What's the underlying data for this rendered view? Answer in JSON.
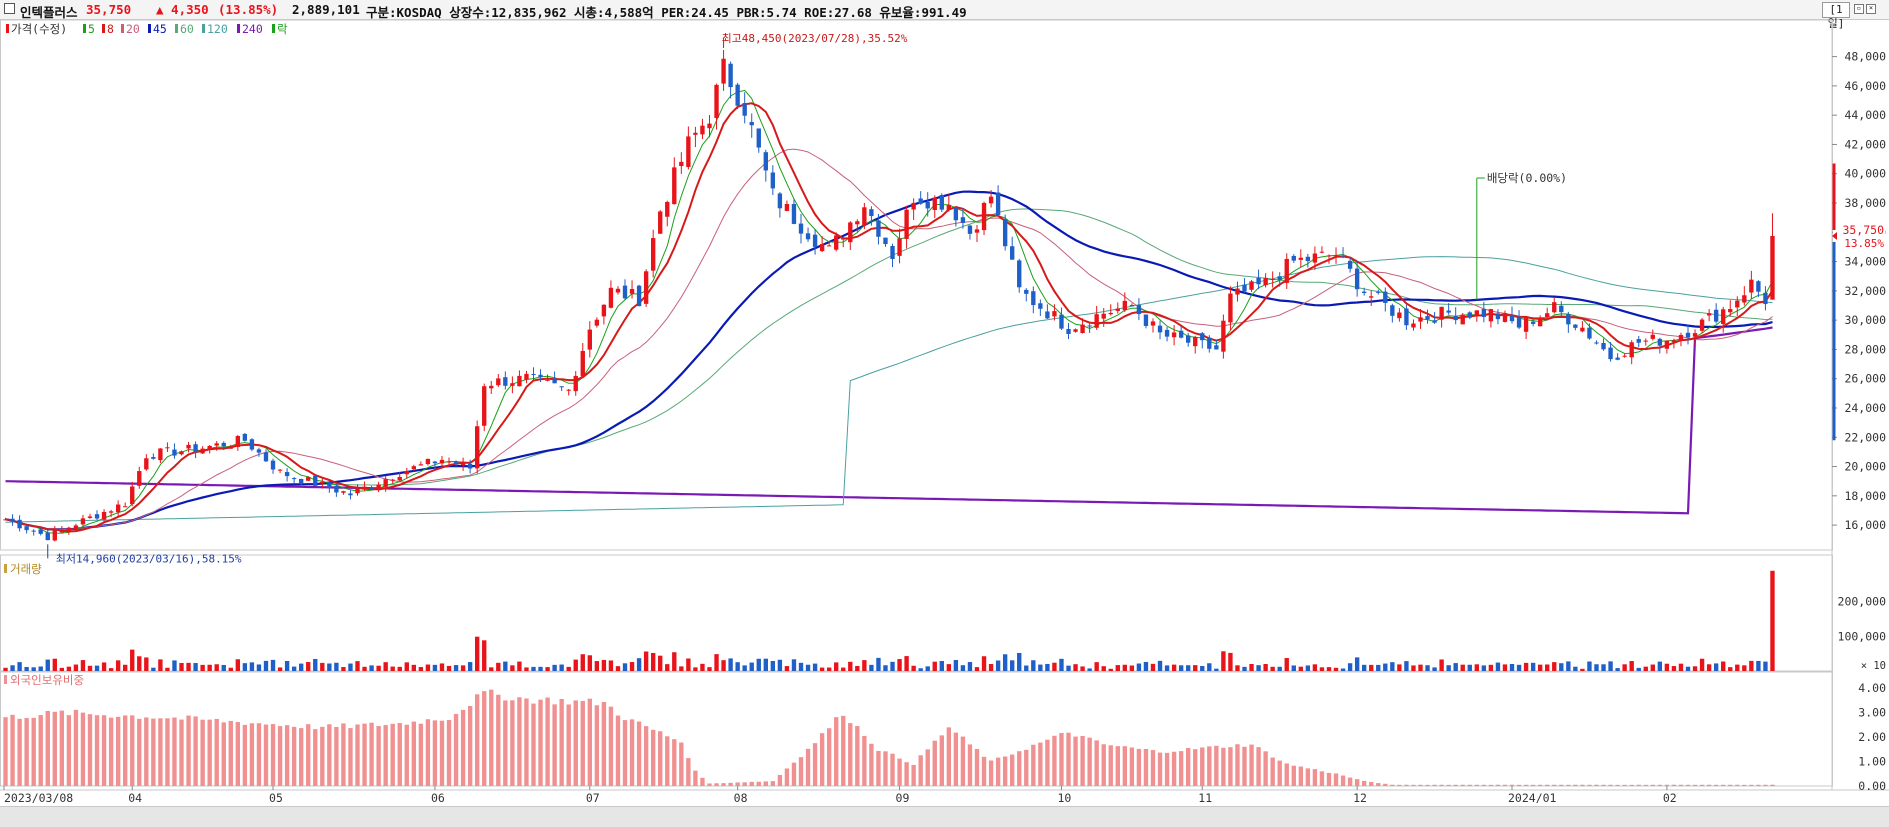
{
  "header": {
    "name": "인텍플러스",
    "price": "35,750",
    "change": "▲ 4,350",
    "change_pct": "(13.85%)",
    "volume": "2,889,101",
    "info": "구분:KOSDAQ 상장수:12,835,962 시총:4,588억 PER:24.45 PBR:5.74 ROE:27.68 유보율:991.49",
    "period": "[1일]"
  },
  "colors": {
    "up": "#e8141a",
    "down": "#1f5fc8",
    "ma5": "#1aa01a",
    "ma8": "#d61a1a",
    "ma20": "#c8607a",
    "ma45": "#0a1ab4",
    "ma60": "#58a878",
    "ma120": "#4aa0a0",
    "ma240": "#7a1ab4",
    "foreign": "#f09090"
  },
  "legend": [
    {
      "label": "가격(수정)",
      "color": "#e8141a"
    },
    {
      "label": "5",
      "color": "#1aa01a"
    },
    {
      "label": "8",
      "color": "#d61a1a"
    },
    {
      "label": "20",
      "color": "#c8607a"
    },
    {
      "label": "45",
      "color": "#0a1ab4"
    },
    {
      "label": "60",
      "color": "#58a878"
    },
    {
      "label": "120",
      "color": "#4aa0a0"
    },
    {
      "label": "240",
      "color": "#7a1ab4"
    },
    {
      "label": "락",
      "color": "#1aa01a"
    }
  ],
  "annotations": {
    "high": "최고48,450(2023/07/28),35.52%",
    "low": "최저14,960(2023/03/16),58.15%",
    "dividend": "배당락(0.00%)",
    "last_price": "35,750",
    "last_pct": "13.85%"
  },
  "chart_data": [
    {
      "type": "candlestick",
      "title": "",
      "y_ticks": [
        16000,
        18000,
        20000,
        22000,
        24000,
        26000,
        28000,
        30000,
        32000,
        34000,
        36000,
        38000,
        40000,
        42000,
        44000,
        46000,
        48000
      ],
      "ylim": [
        14300,
        50500
      ],
      "x_ticks": [
        "2023/03/08",
        "04",
        "05",
        "06",
        "07",
        "08",
        "09",
        "10",
        "11",
        "12",
        "2024/01",
        "02"
      ],
      "anchors": [
        [
          "2023-03-08",
          16400
        ],
        [
          "2023-03-16",
          15200
        ],
        [
          "2023-03-22",
          16100
        ],
        [
          "2023-03-31",
          17500
        ],
        [
          "2023-04-05",
          20800
        ],
        [
          "2023-04-14",
          21200
        ],
        [
          "2023-04-25",
          21800
        ],
        [
          "2023-05-02",
          19600
        ],
        [
          "2023-05-10",
          18700
        ],
        [
          "2023-05-16",
          18100
        ],
        [
          "2023-05-25",
          19600
        ],
        [
          "2023-06-02",
          20500
        ],
        [
          "2023-06-08",
          19900
        ],
        [
          "2023-06-12",
          25700
        ],
        [
          "2023-06-20",
          26000
        ],
        [
          "2023-06-28",
          25200
        ],
        [
          "2023-07-03",
          29500
        ],
        [
          "2023-07-06",
          32000
        ],
        [
          "2023-07-12",
          31500
        ],
        [
          "2023-07-17",
          37500
        ],
        [
          "2023-07-21",
          42000
        ],
        [
          "2023-07-26",
          44000
        ],
        [
          "2023-07-28",
          47200
        ],
        [
          "2023-08-02",
          44500
        ],
        [
          "2023-08-08",
          38500
        ],
        [
          "2023-08-14",
          36500
        ],
        [
          "2023-08-18",
          34700
        ],
        [
          "2023-08-25",
          38000
        ],
        [
          "2023-08-31",
          34500
        ],
        [
          "2023-09-05",
          38500
        ],
        [
          "2023-09-12",
          38000
        ],
        [
          "2023-09-15",
          36000
        ],
        [
          "2023-09-20",
          38500
        ],
        [
          "2023-09-26",
          32000
        ],
        [
          "2023-10-05",
          29500
        ],
        [
          "2023-10-12",
          30500
        ],
        [
          "2023-10-18",
          31000
        ],
        [
          "2023-10-24",
          29000
        ],
        [
          "2023-10-30",
          28500
        ],
        [
          "2023-11-03",
          28000
        ],
        [
          "2023-11-07",
          31500
        ],
        [
          "2023-11-14",
          32500
        ],
        [
          "2023-11-20",
          34000
        ],
        [
          "2023-11-28",
          34500
        ],
        [
          "2023-12-04",
          32000
        ],
        [
          "2023-12-12",
          30000
        ],
        [
          "2023-12-20",
          30500
        ],
        [
          "2023-12-28",
          30500
        ],
        [
          "2024-01-03",
          29600
        ],
        [
          "2024-01-10",
          30800
        ],
        [
          "2024-01-16",
          29500
        ],
        [
          "2024-01-22",
          27500
        ],
        [
          "2024-01-26",
          28500
        ],
        [
          "2024-02-01",
          28700
        ],
        [
          "2024-02-07",
          29500
        ],
        [
          "2024-02-14",
          31000
        ],
        [
          "2024-02-19",
          32500
        ],
        [
          "2024-02-21",
          31400
        ],
        [
          "2024-02-22",
          35750
        ]
      ],
      "high": {
        "date": "2023-07-28",
        "value": 48450
      },
      "low": {
        "date": "2023-03-16",
        "value": 14960
      },
      "dividend_date": "2023-12-26"
    },
    {
      "type": "bar",
      "title": "거래량",
      "unit": "× 10",
      "y_ticks": [
        100000,
        200000
      ],
      "ylim": [
        0,
        320000
      ],
      "last_value": 288910
    },
    {
      "type": "bar",
      "title": "외국인보유비중",
      "y_ticks": [
        0.0,
        1.0,
        2.0,
        3.0,
        4.0
      ],
      "ylim": [
        0,
        4.5
      ],
      "anchors": [
        [
          "2023-03-08",
          2.8
        ],
        [
          "2023-03-20",
          3.0
        ],
        [
          "2023-04-10",
          2.8
        ],
        [
          "2023-05-10",
          2.4
        ],
        [
          "2023-05-25",
          2.55
        ],
        [
          "2023-06-05",
          2.8
        ],
        [
          "2023-06-12",
          3.8
        ],
        [
          "2023-06-20",
          3.55
        ],
        [
          "2023-07-05",
          3.4
        ],
        [
          "2023-07-10",
          2.8
        ],
        [
          "2023-07-20",
          1.8
        ],
        [
          "2023-07-24",
          0.6
        ],
        [
          "2023-07-26",
          0.1
        ],
        [
          "2023-08-08",
          0.2
        ],
        [
          "2023-08-15",
          1.5
        ],
        [
          "2023-08-22",
          3.0
        ],
        [
          "2023-08-29",
          1.5
        ],
        [
          "2023-09-05",
          0.9
        ],
        [
          "2023-09-12",
          2.4
        ],
        [
          "2023-09-20",
          1.0
        ],
        [
          "2023-10-05",
          2.2
        ],
        [
          "2023-10-12",
          1.7
        ],
        [
          "2023-10-24",
          1.4
        ],
        [
          "2023-11-03",
          1.6
        ],
        [
          "2023-11-10",
          1.7
        ],
        [
          "2023-11-17",
          0.9
        ],
        [
          "2023-11-28",
          0.5
        ],
        [
          "2023-12-04",
          0.2
        ],
        [
          "2023-12-08",
          0.05
        ],
        [
          "2024-02-22",
          0.05
        ]
      ]
    }
  ]
}
